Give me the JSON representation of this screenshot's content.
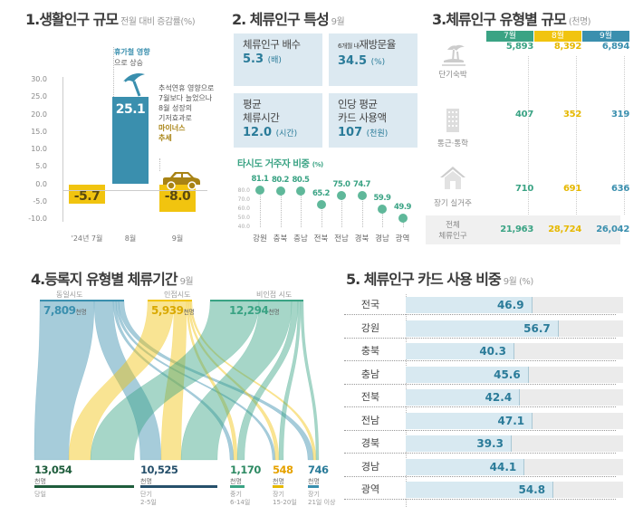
{
  "colors": {
    "blue": "#3a8fae",
    "yellow": "#f1c40f",
    "green": "#3aa384",
    "mustard": "#a88314",
    "lightblue": "#dce9f1"
  },
  "section1": {
    "title": "1.생활인구 규모",
    "subtitle": "전월 대비 증감률(%)",
    "annotation_top_1": "휴가철 영향",
    "annotation_top_2": "으로 상승",
    "annotation_side": [
      "추석연휴 영향으로",
      "7월보다 늘었으나",
      "8월 성장의",
      "기저효과로"
    ],
    "annotation_side_hl": [
      "마이너스",
      "추세"
    ],
    "icons": [
      "beach-umbrella-icon",
      "car-icon"
    ],
    "chart_data": {
      "type": "bar",
      "title": "1.생활인구 규모",
      "ylabel": "전월 대비 증감률(%)",
      "categories": [
        "'24년 7월",
        "8월",
        "9월"
      ],
      "values": [
        -5.7,
        25.1,
        -8.0
      ],
      "value_labels": [
        "-5.7",
        "25.1",
        "-8.0"
      ],
      "ylim": [
        -10,
        30
      ],
      "yticks": [
        "30.0",
        "25.0",
        "20.0",
        "15.0",
        "10.0",
        "5.0",
        "0.0",
        "-5.0",
        "-10.0"
      ]
    }
  },
  "section2": {
    "title": "2. 체류인구 특성",
    "subtitle": "9월",
    "cards": [
      {
        "label": "체류인구 배수",
        "prefix": "",
        "value": "5.3",
        "unit": "(배)"
      },
      {
        "label": "재방문율",
        "prefix": "6개월 내",
        "value": "34.5",
        "unit": "(%)"
      },
      {
        "label1": "평균",
        "label2": "체류시간",
        "value": "12.0",
        "unit": "(시간)"
      },
      {
        "label1": "인당 평균",
        "label2": "카드 사용액",
        "value": "107",
        "unit": "(천원)"
      }
    ],
    "chart_data": {
      "type": "scatter",
      "title": "타시도 거주자 비중",
      "unit": "(%)",
      "categories": [
        "강원",
        "충북",
        "충남",
        "전북",
        "전남",
        "경북",
        "경남",
        "광역"
      ],
      "values": [
        81.1,
        80.2,
        80.5,
        65.2,
        75.0,
        74.7,
        59.9,
        49.9
      ],
      "value_labels": [
        "81.1",
        "80.2",
        "80.5",
        "65.2",
        "75.0",
        "74.7",
        "59.9",
        "49.9"
      ],
      "ylim": [
        40,
        80
      ],
      "yticks": [
        "80.0",
        "70.0",
        "60.0",
        "50.0",
        "40.0"
      ]
    }
  },
  "section3": {
    "title": "3.체류인구 유형별 규모",
    "subtitle": "(천명)",
    "chart_data": {
      "type": "table",
      "columns": [
        "7월",
        "8월",
        "9월"
      ],
      "rows": [
        {
          "label": "단기숙박",
          "icon": "island-icon",
          "values": [
            "5,893",
            "8,392",
            "6,894"
          ]
        },
        {
          "label": "통근·통학",
          "icon": "building-icon",
          "values": [
            "407",
            "352",
            "319"
          ]
        },
        {
          "label": "장기 실거주",
          "icon": "house-icon",
          "values": [
            "710",
            "691",
            "636"
          ]
        }
      ],
      "total": {
        "label1": "전체",
        "label2": "체류인구",
        "values": [
          "21,963",
          "28,724",
          "26,042"
        ]
      }
    }
  },
  "section4": {
    "title": "4.등록지 유형별 체류기간",
    "subtitle": "9월",
    "unit": "천명",
    "chart_data": {
      "type": "sankey",
      "sources": [
        {
          "label": "동일시도",
          "value": "7,809"
        },
        {
          "label": "인접시도",
          "value": "5,939"
        },
        {
          "label": "비인접 시도",
          "value": "12,294"
        }
      ],
      "targets": [
        {
          "label1": "당일",
          "label2": "",
          "value": "13,054"
        },
        {
          "label1": "단기",
          "label2": "2-5일",
          "value": "10,525"
        },
        {
          "label1": "중기",
          "label2": "6-14일",
          "value": "1,170"
        },
        {
          "label1": "장기",
          "label2": "15-20일",
          "value": "548"
        },
        {
          "label1": "장기",
          "label2": "21일 이상",
          "value": "746"
        }
      ]
    }
  },
  "section5": {
    "title": "5. 체류인구 카드 사용 비중",
    "subtitle": "9월 (%)",
    "chart_data": {
      "type": "bar",
      "orientation": "horizontal",
      "categories": [
        "전국",
        "강원",
        "충북",
        "충남",
        "전북",
        "전남",
        "경북",
        "경남",
        "광역"
      ],
      "values": [
        46.9,
        56.7,
        40.3,
        45.6,
        42.4,
        47.1,
        39.3,
        44.1,
        54.8
      ],
      "value_labels": [
        "46.9",
        "56.7",
        "40.3",
        "45.6",
        "42.4",
        "47.1",
        "39.3",
        "44.1",
        "54.8"
      ],
      "xlim": [
        0,
        100
      ]
    }
  }
}
